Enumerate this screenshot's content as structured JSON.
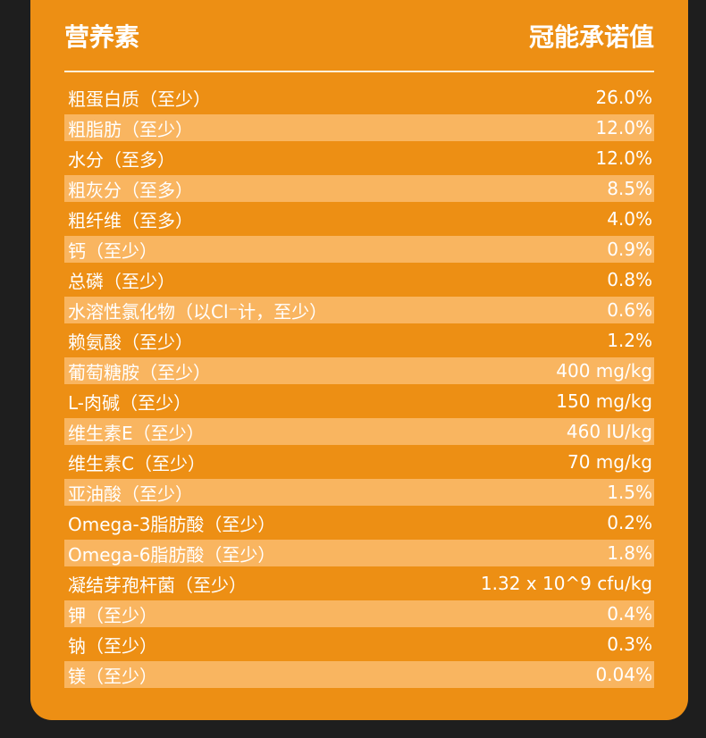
{
  "header": {
    "left_label": "营养素",
    "right_label": "冠能承诺值"
  },
  "rows": [
    {
      "name": "粗蛋白质（至少）",
      "value": "26.0%"
    },
    {
      "name": "粗脂肪（至少）",
      "value": "12.0%"
    },
    {
      "name": "水分（至多）",
      "value": "12.0%"
    },
    {
      "name": "粗灰分（至多）",
      "value": "8.5%"
    },
    {
      "name": "粗纤维（至多）",
      "value": "4.0%"
    },
    {
      "name": "钙（至少）",
      "value": "0.9%"
    },
    {
      "name": "总磷（至少）",
      "value": "0.8%"
    },
    {
      "name": "水溶性氯化物（以Cl⁻计，至少）",
      "value": "0.6%"
    },
    {
      "name": "赖氨酸（至少）",
      "value": "1.2%"
    },
    {
      "name": "葡萄糖胺（至少）",
      "value": "400 mg/kg"
    },
    {
      "name": "L-肉碱（至少）",
      "value": "150 mg/kg"
    },
    {
      "name": "维生素E（至少）",
      "value": "460 IU/kg"
    },
    {
      "name": "维生素C（至少）",
      "value": "70 mg/kg"
    },
    {
      "name": "亚油酸（至少）",
      "value": "1.5%"
    },
    {
      "name": "Omega-3脂肪酸（至少）",
      "value": "0.2%"
    },
    {
      "name": "Omega-6脂肪酸（至少）",
      "value": "1.8%"
    },
    {
      "name": "凝结芽孢杆菌（至少）",
      "value": "1.32 x 10^9 cfu/kg"
    },
    {
      "name": "钾（至少）",
      "value": "0.4%"
    },
    {
      "name": "钠（至少）",
      "value": "0.3%"
    },
    {
      "name": "镁（至少）",
      "value": "0.04%"
    }
  ]
}
